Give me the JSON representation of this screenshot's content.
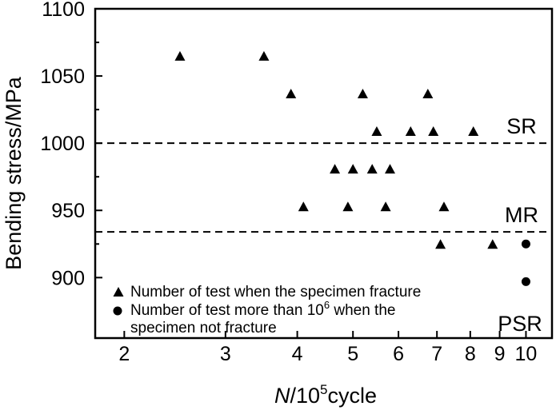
{
  "chart_data": {
    "type": "scatter",
    "xlabel_italic": "N",
    "xlabel_rest": "/10",
    "xlabel_sup": "5",
    "xlabel_tail": "cycle",
    "ylabel": "Bending stress/MPa",
    "x_scale": "log",
    "xlim": [
      1.78,
      11.1
    ],
    "ylim": [
      855,
      1100
    ],
    "x_ticks": [
      2,
      3,
      4,
      5,
      6,
      7,
      8,
      9,
      10
    ],
    "y_ticks": [
      900,
      950,
      1000,
      1050,
      1100
    ],
    "grid": false,
    "legend_position": "bottom-left",
    "series": [
      {
        "name": "Number of test when the specimen fracture",
        "marker": "triangle",
        "points": [
          [
            2.5,
            1065
          ],
          [
            3.5,
            1065
          ],
          [
            3.9,
            1037
          ],
          [
            5.2,
            1037
          ],
          [
            6.75,
            1037
          ],
          [
            5.5,
            1009
          ],
          [
            6.3,
            1009
          ],
          [
            6.9,
            1009
          ],
          [
            8.1,
            1009
          ],
          [
            4.65,
            981
          ],
          [
            5.0,
            981
          ],
          [
            5.4,
            981
          ],
          [
            5.8,
            981
          ],
          [
            4.1,
            953
          ],
          [
            4.9,
            953
          ],
          [
            5.7,
            953
          ],
          [
            7.2,
            953
          ],
          [
            7.1,
            925
          ],
          [
            8.75,
            925
          ]
        ]
      },
      {
        "name": "Number of test more than 10",
        "name_sup": "6",
        "name_line1_tail": " when the",
        "name_line2": "specimen not fracture",
        "marker": "circle",
        "points": [
          [
            10,
            925
          ],
          [
            10,
            897
          ]
        ]
      }
    ],
    "reference_lines": [
      {
        "label": "SR",
        "y": 1000
      },
      {
        "label": "MR",
        "y": 934
      },
      {
        "label": "PSR",
        "y": null
      }
    ]
  }
}
